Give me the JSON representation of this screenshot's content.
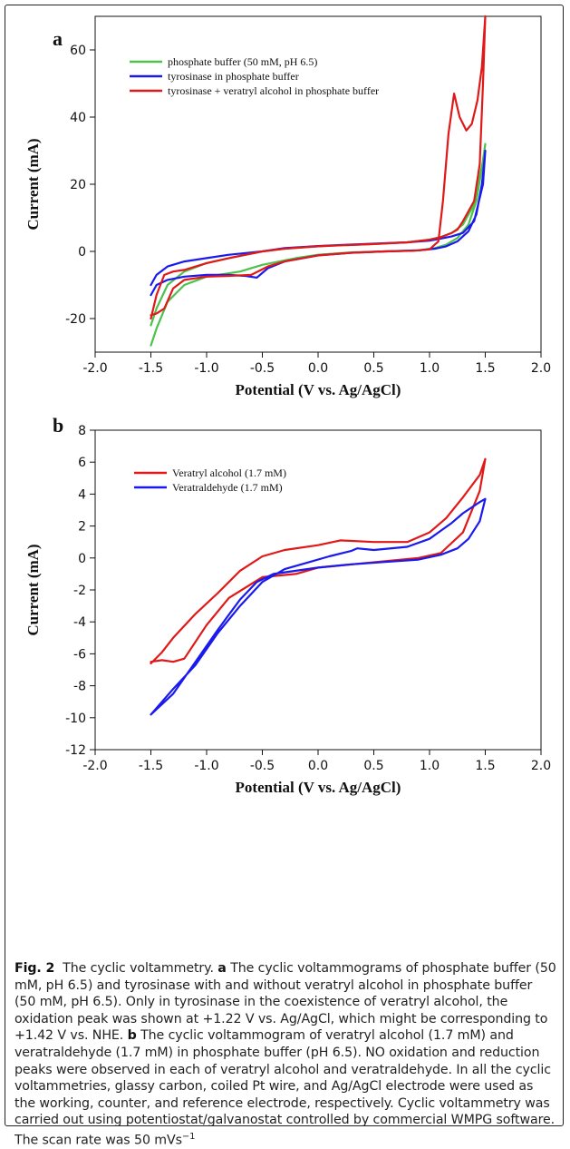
{
  "chart_data": [
    {
      "panel": "a",
      "type": "line",
      "xlabel": "Potential (V vs. Ag/AgCl)",
      "ylabel": "Current (mA)",
      "xlim": [
        -2.0,
        2.0
      ],
      "ylim": [
        -30,
        70
      ],
      "xticks": [
        "-2.0",
        "-1.5",
        "-1.0",
        "-0.5",
        "0.0",
        "0.5",
        "1.0",
        "1.5",
        "2.0"
      ],
      "yticks": [
        "-20",
        "0",
        "20",
        "40",
        "60"
      ],
      "legend_position": "top-left",
      "series": [
        {
          "name": "phosphate buffer (50 mM, pH 6.5)",
          "color": "#4cc24c",
          "x": [
            -1.5,
            -1.45,
            -1.35,
            -1.2,
            -1.0,
            -0.7,
            -0.5,
            -0.2,
            0.0,
            0.3,
            0.6,
            0.9,
            1.05,
            1.15,
            1.25,
            1.35,
            1.42,
            1.47,
            1.5,
            1.48,
            1.4,
            1.3,
            1.2,
            1.1,
            1.0,
            0.8,
            0.5,
            0.2,
            0.0,
            -0.3,
            -0.5,
            -0.8,
            -1.0,
            -1.2,
            -1.35,
            -1.45,
            -1.5
          ],
          "y": [
            -28,
            -23,
            -15,
            -10,
            -7.5,
            -6.0,
            -4.0,
            -2.0,
            -1.0,
            -0.3,
            0.0,
            0.3,
            1.0,
            2.0,
            4.0,
            8.0,
            15.0,
            25.0,
            32.0,
            27.0,
            14.0,
            8.0,
            5.5,
            4.3,
            3.5,
            2.7,
            2.2,
            1.8,
            1.5,
            0.8,
            0.0,
            -2.0,
            -3.5,
            -6.0,
            -10.0,
            -17.0,
            -22.0
          ]
        },
        {
          "name": "tyrosinase in phosphate buffer",
          "color": "#1a1aee",
          "x": [
            -1.5,
            -1.45,
            -1.35,
            -1.2,
            -1.0,
            -0.8,
            -0.65,
            -0.55,
            -0.45,
            -0.3,
            0.0,
            0.3,
            0.6,
            0.9,
            1.05,
            1.15,
            1.25,
            1.35,
            1.42,
            1.47,
            1.5,
            1.48,
            1.4,
            1.3,
            1.2,
            1.1,
            1.0,
            0.8,
            0.5,
            0.2,
            0.0,
            -0.3,
            -0.5,
            -0.8,
            -1.0,
            -1.2,
            -1.35,
            -1.45,
            -1.5
          ],
          "y": [
            -13,
            -10,
            -8.5,
            -7.5,
            -7.0,
            -7.0,
            -7.3,
            -7.8,
            -5.0,
            -3.0,
            -1.2,
            -0.4,
            0.0,
            0.3,
            0.8,
            1.5,
            3.0,
            6.0,
            11.0,
            20.0,
            30.0,
            20.0,
            9.0,
            5.5,
            4.5,
            3.8,
            3.2,
            2.7,
            2.3,
            1.9,
            1.6,
            1.0,
            0.0,
            -1.0,
            -2.0,
            -3.0,
            -4.5,
            -7.0,
            -10.0
          ]
        },
        {
          "name": "tyrosinase + veratryl alcohol in phosphate buffer",
          "color": "#e01818",
          "x": [
            -1.5,
            -1.45,
            -1.38,
            -1.3,
            -1.2,
            -1.0,
            -0.8,
            -0.6,
            -0.45,
            -0.3,
            0.0,
            0.3,
            0.6,
            0.85,
            1.0,
            1.08,
            1.12,
            1.17,
            1.22,
            1.27,
            1.33,
            1.38,
            1.43,
            1.47,
            1.5,
            1.48,
            1.45,
            1.4,
            1.35,
            1.3,
            1.25,
            1.2,
            1.1,
            1.0,
            0.8,
            0.5,
            0.2,
            0.0,
            -0.3,
            -0.5,
            -0.8,
            -1.0,
            -1.2,
            -1.3,
            -1.38,
            -1.45,
            -1.5
          ],
          "y": [
            -19,
            -18.5,
            -17,
            -11,
            -8.5,
            -7.5,
            -7.3,
            -7.0,
            -4.5,
            -3.0,
            -1.2,
            -0.4,
            0.0,
            0.2,
            0.6,
            3.0,
            15.0,
            35.0,
            47.0,
            40.0,
            36.0,
            38.0,
            45.0,
            55.0,
            70.0,
            50.0,
            26.0,
            15.0,
            12.0,
            9.0,
            6.5,
            5.5,
            4.2,
            3.5,
            2.7,
            2.2,
            1.8,
            1.5,
            0.8,
            0.0,
            -2.0,
            -3.5,
            -5.5,
            -6.0,
            -7.0,
            -13.0,
            -20.0
          ]
        }
      ]
    },
    {
      "panel": "b",
      "type": "line",
      "xlabel": "Potential (V vs. Ag/AgCl)",
      "ylabel": "Current (mA)",
      "xlim": [
        -2.0,
        2.0
      ],
      "ylim": [
        -12,
        8
      ],
      "xticks": [
        "-2.0",
        "-1.5",
        "-1.0",
        "-0.5",
        "0.0",
        "0.5",
        "1.0",
        "1.5",
        "2.0"
      ],
      "yticks": [
        "-12",
        "-10",
        "-8",
        "-6",
        "-4",
        "-2",
        "0",
        "2",
        "4",
        "6",
        "8"
      ],
      "legend_position": "top-left",
      "series": [
        {
          "name": "Veratryl alcohol (1.7 mM)",
          "color": "#e01818",
          "x": [
            -1.5,
            -1.4,
            -1.3,
            -1.2,
            -1.0,
            -0.8,
            -0.5,
            -0.2,
            0.0,
            0.3,
            0.6,
            0.9,
            1.1,
            1.3,
            1.45,
            1.5,
            1.45,
            1.3,
            1.15,
            1.05,
            1.0,
            0.8,
            0.5,
            0.2,
            0.0,
            -0.3,
            -0.5,
            -0.7,
            -0.9,
            -1.1,
            -1.3,
            -1.4,
            -1.5
          ],
          "y": [
            -6.5,
            -6.4,
            -6.5,
            -6.3,
            -4.2,
            -2.5,
            -1.2,
            -1.0,
            -0.6,
            -0.4,
            -0.2,
            0.0,
            0.3,
            1.6,
            4.2,
            6.2,
            5.2,
            3.8,
            2.5,
            1.9,
            1.6,
            1.0,
            1.0,
            1.1,
            0.8,
            0.5,
            0.1,
            -0.8,
            -2.2,
            -3.5,
            -5.0,
            -5.9,
            -6.6
          ]
        },
        {
          "name": "Veratraldehyde (1.7 mM)",
          "color": "#1a1aee",
          "x": [
            -1.5,
            -1.3,
            -1.1,
            -0.9,
            -0.7,
            -0.55,
            -0.4,
            -0.2,
            0.0,
            0.3,
            0.6,
            0.9,
            1.1,
            1.25,
            1.35,
            1.45,
            1.5,
            1.45,
            1.3,
            1.2,
            1.1,
            1.0,
            0.8,
            0.5,
            0.35,
            0.3,
            0.1,
            -0.1,
            -0.3,
            -0.5,
            -0.7,
            -0.9,
            -1.1,
            -1.3,
            -1.5
          ],
          "y": [
            -9.8,
            -8.5,
            -6.5,
            -4.5,
            -2.6,
            -1.5,
            -1.0,
            -0.8,
            -0.6,
            -0.4,
            -0.25,
            -0.1,
            0.2,
            0.6,
            1.2,
            2.3,
            3.7,
            3.5,
            2.8,
            2.2,
            1.7,
            1.2,
            0.7,
            0.5,
            0.6,
            0.45,
            0.1,
            -0.3,
            -0.7,
            -1.5,
            -3.0,
            -4.7,
            -6.7,
            -8.2,
            -9.8
          ]
        }
      ]
    }
  ],
  "caption": {
    "label": "Fig. 2",
    "title": "The cyclic voltammetry.",
    "panel_a_label": "a",
    "panel_a_text": "The cyclic voltammograms of phosphate buffer (50 mM, pH 6.5) and tyrosinase with and without veratryl alcohol in phosphate buffer (50 mM, pH 6.5). Only in tyrosinase in the coexistence of veratryl alcohol, the oxidation peak was shown at +1.22 V vs. Ag/AgCl, which might be corresponding to +1.42 V vs. NHE.",
    "panel_b_label": "b",
    "panel_b_text": "The cyclic voltammogram of veratryl alcohol (1.7 mM) and veratraldehyde (1.7 mM) in phosphate buffer (pH 6.5). NO oxidation and reduction peaks were observed in each of veratryl alcohol and veratraldehyde. In all the cyclic voltammetries, glassy carbon, coiled Pt wire, and Ag/AgCl electrode were used as the working, counter, and reference electrode, respectively. Cyclic voltammetry was carried out using potentiostat/galvanostat controlled by commercial WMPG software. The scan rate was 50 mVs",
    "scan_rate_superscript": "−1"
  }
}
